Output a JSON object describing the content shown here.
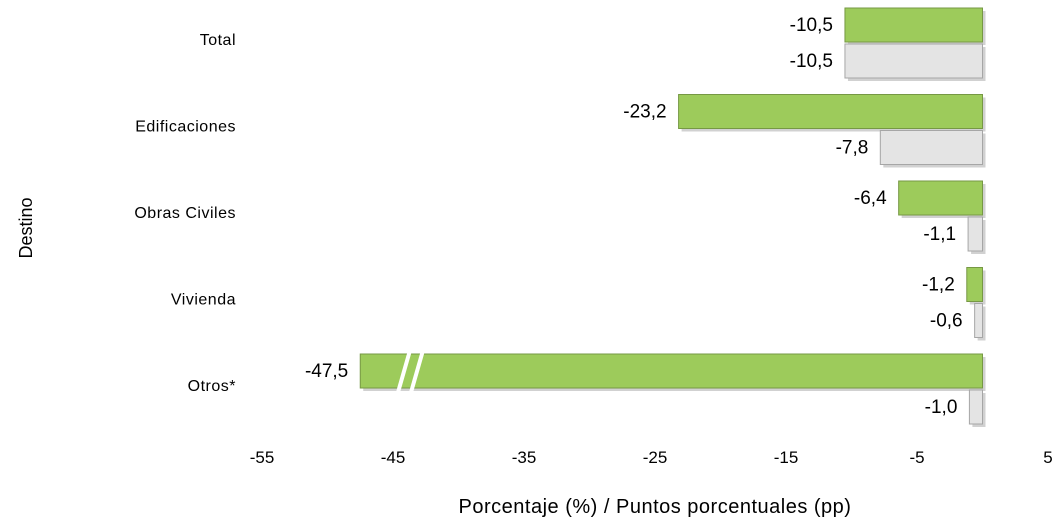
{
  "chart_data": {
    "type": "bar",
    "orientation": "horizontal",
    "categories": [
      "Total",
      "Edificaciones",
      "Obras Civiles",
      "Vivienda",
      "Otros*"
    ],
    "series": [
      {
        "values": [
          -10.5,
          -23.2,
          -6.4,
          -1.2,
          -47.5
        ],
        "labels": [
          "-10,5",
          "-23,2",
          "-6,4",
          "-1,2",
          "-47,5"
        ],
        "color": "#9DCB5B"
      },
      {
        "values": [
          -10.5,
          -7.8,
          -1.1,
          -0.6,
          -1.0
        ],
        "labels": [
          "-10,5",
          "-7,8",
          "-1,1",
          "-0,6",
          "-1,0"
        ],
        "color": "#E4E4E4"
      }
    ],
    "x_ticks": [
      "-55",
      "-45",
      "-35",
      "-25",
      "-15",
      "-5",
      "5"
    ],
    "xlim": [
      -55,
      5
    ],
    "xlabel": "Porcentaje (%) / Puntos porcentuales (pp)",
    "ylabel": "Destino",
    "axis_break": {
      "category": "Otros*",
      "at": -44
    },
    "grid": false,
    "legend": "none"
  }
}
